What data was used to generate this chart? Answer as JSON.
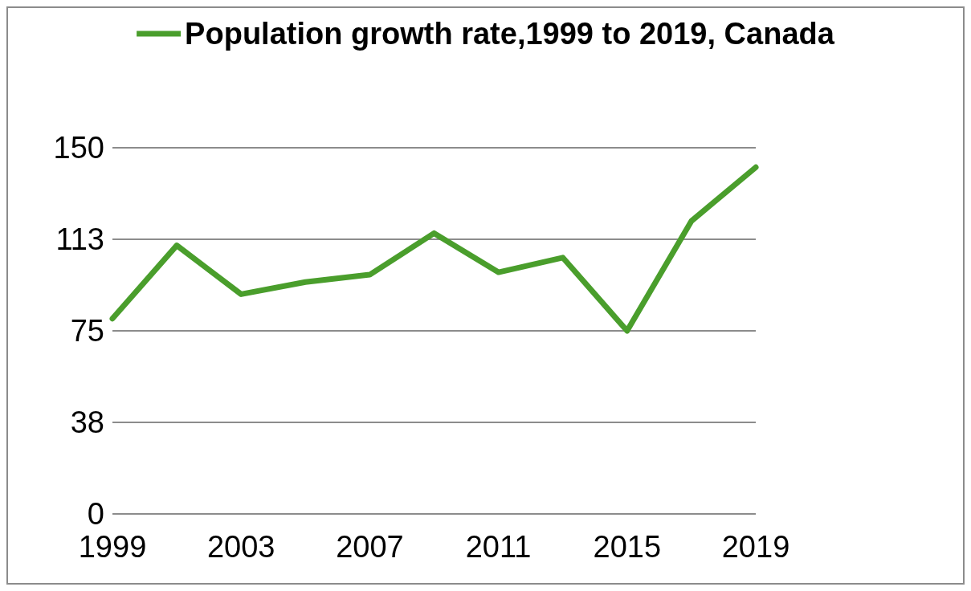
{
  "chart_data": {
    "type": "line",
    "x": [
      1999,
      2001,
      2003,
      2005,
      2007,
      2009,
      2011,
      2013,
      2015,
      2017,
      2019
    ],
    "series": [
      {
        "name": "Population growth rate,1999 to 2019, Canada",
        "color": "#4a9e2c",
        "values": [
          80,
          110,
          90,
          95,
          98,
          115,
          99,
          105,
          75,
          120,
          142
        ]
      }
    ],
    "xlim": [
      1999,
      2019
    ],
    "xticks": [
      1999,
      2003,
      2007,
      2011,
      2015,
      2019
    ],
    "ylim": [
      0,
      150
    ],
    "yticks": [
      0,
      {
        "value": 37.5,
        "label": "38"
      },
      75,
      {
        "value": 112.5,
        "label": "113"
      },
      150
    ],
    "grid": "y",
    "legend": "top",
    "marker": "none",
    "line_style": "solid"
  }
}
